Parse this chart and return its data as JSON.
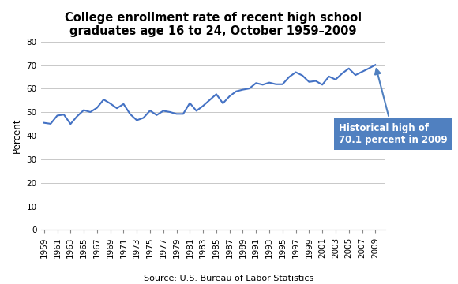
{
  "title": "College enrollment rate of recent high school\ngraduates age 16 to 24, October 1959–2009",
  "source_label": "Source: U.S. Bureau of Labor Statistics",
  "ylabel": "Percent",
  "years": [
    1959,
    1960,
    1961,
    1962,
    1963,
    1964,
    1965,
    1966,
    1967,
    1968,
    1969,
    1970,
    1971,
    1972,
    1973,
    1974,
    1975,
    1976,
    1977,
    1978,
    1979,
    1980,
    1981,
    1982,
    1983,
    1984,
    1985,
    1986,
    1987,
    1988,
    1989,
    1990,
    1991,
    1992,
    1993,
    1994,
    1995,
    1996,
    1997,
    1998,
    1999,
    2000,
    2001,
    2002,
    2003,
    2004,
    2005,
    2006,
    2007,
    2008,
    2009
  ],
  "values": [
    45.5,
    45.1,
    48.6,
    49.0,
    45.0,
    48.3,
    50.9,
    50.1,
    51.9,
    55.4,
    53.7,
    51.7,
    53.5,
    49.2,
    46.6,
    47.6,
    50.7,
    48.8,
    50.6,
    50.1,
    49.3,
    49.3,
    53.9,
    50.6,
    52.7,
    55.2,
    57.7,
    53.8,
    56.8,
    58.9,
    59.6,
    60.1,
    62.4,
    61.7,
    62.6,
    61.9,
    61.9,
    65.0,
    67.0,
    65.6,
    62.9,
    63.3,
    61.7,
    65.2,
    63.9,
    66.5,
    68.6,
    65.8,
    67.2,
    68.6,
    70.1
  ],
  "ylim": [
    0,
    80
  ],
  "xlim": [
    1958.5,
    2010.5
  ],
  "yticks": [
    0,
    10,
    20,
    30,
    40,
    50,
    60,
    70,
    80
  ],
  "xtick_years": [
    1959,
    1961,
    1963,
    1965,
    1967,
    1969,
    1971,
    1973,
    1975,
    1977,
    1979,
    1981,
    1983,
    1985,
    1987,
    1989,
    1991,
    1993,
    1995,
    1997,
    1999,
    2001,
    2003,
    2005,
    2007,
    2009
  ],
  "line_color": "#4472C4",
  "annotation_text": "Historical high of\n70.1 percent in 2009",
  "annotation_box_color": "#5080C0",
  "annotation_text_color": "#ffffff",
  "background_color": "#ffffff",
  "grid_color": "#c8c8c8",
  "title_fontsize": 10.5,
  "ylabel_fontsize": 8.5,
  "tick_label_fontsize": 7.5,
  "source_fontsize": 8
}
